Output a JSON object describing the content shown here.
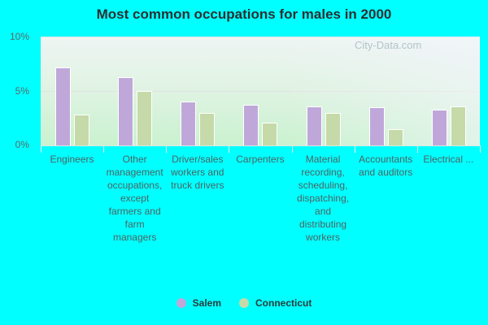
{
  "title": "Most common occupations for males in 2000",
  "watermark": "City-Data.com",
  "y_ticks": [
    "10%",
    "5%",
    "0%"
  ],
  "legend": [
    {
      "name": "Salem",
      "color": "#bfa8d9"
    },
    {
      "name": "Connecticut",
      "color": "#c5daa8"
    }
  ],
  "chart_data": {
    "type": "bar",
    "title": "Most common occupations for males in 2000",
    "xlabel": "",
    "ylabel": "",
    "ylim": [
      0,
      10
    ],
    "y_unit": "%",
    "grid": true,
    "legend_position": "bottom",
    "categories": [
      "Engineers",
      "Other management occupations, except farmers and farm managers",
      "Driver/sales workers and truck drivers",
      "Carpenters",
      "Material recording, scheduling, dispatching, and distributing workers",
      "Accountants and auditors",
      "Electrical ..."
    ],
    "series": [
      {
        "name": "Salem",
        "color": "#bfa8d9",
        "values": [
          7.2,
          6.3,
          4.0,
          3.7,
          3.6,
          3.5,
          3.3
        ]
      },
      {
        "name": "Connecticut",
        "color": "#c5daa8",
        "values": [
          2.8,
          5.0,
          3.0,
          2.1,
          3.0,
          1.5,
          3.6
        ]
      }
    ]
  }
}
